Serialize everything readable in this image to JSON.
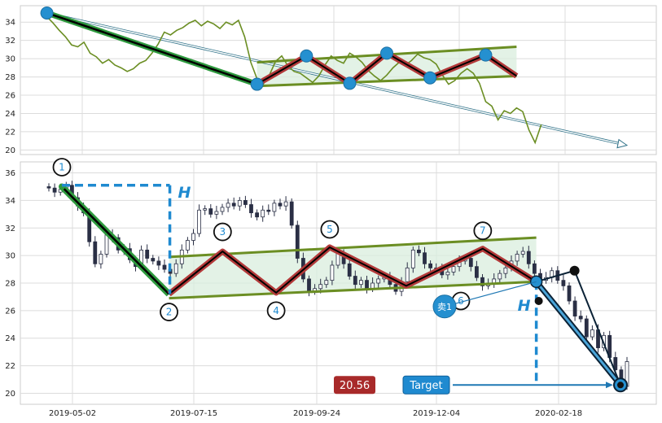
{
  "chart_data": [
    {
      "type": "line",
      "panel": "top",
      "ylim": [
        19.5,
        35.8
      ],
      "yticks": [
        20,
        22,
        24,
        26,
        28,
        30,
        32,
        34
      ],
      "grid": true,
      "series": [
        {
          "color": "#6b8e23",
          "values": [
            35,
            34.6,
            33.9,
            33.1,
            32.4,
            31.5,
            31.3,
            31.8,
            30.6,
            30.2,
            29.5,
            29.9,
            29.3,
            29.0,
            28.6,
            28.9,
            29.5,
            29.8,
            30.6,
            31.6,
            32.9,
            32.6,
            33.1,
            33.4,
            33.9,
            34.2,
            33.6,
            34.1,
            33.8,
            33.3,
            34.0,
            33.7,
            34.2,
            32.4,
            29.6,
            27.8,
            27.2,
            28.2,
            29.7,
            30.3,
            29.2,
            28.6,
            28.4,
            27.9,
            27.4,
            28.1,
            29.3,
            30.3,
            29.8,
            29.5,
            30.6,
            30.2,
            29.6,
            28.7,
            28.1,
            27.6,
            28.2,
            29.0,
            29.6,
            29.3,
            29.8,
            30.5,
            30.1,
            29.9,
            29.4,
            28.2,
            27.2,
            27.6,
            28.4,
            28.9,
            28.4,
            27.3,
            25.3,
            24.8,
            23.3,
            24.3,
            24.0,
            24.6,
            24.2,
            22.2,
            20.8,
            22.8
          ]
        }
      ],
      "pattern_vertices": [
        {
          "i": 1,
          "y": 35
        },
        {
          "i": 35,
          "y": 27.2
        },
        {
          "i": 43,
          "y": 30.3
        },
        {
          "i": 50,
          "y": 27.3
        },
        {
          "i": 56,
          "y": 30.6
        },
        {
          "i": 63,
          "y": 27.9
        },
        {
          "i": 72,
          "y": 30.4
        },
        {
          "i": 77,
          "y": 28.1
        }
      ],
      "channel": {
        "upper": [
          [
            35,
            29.6
          ],
          [
            77,
            31.3
          ]
        ],
        "lower": [
          [
            35,
            27.0
          ],
          [
            77,
            28.1
          ]
        ]
      },
      "trend_arrow": [
        [
          1,
          35
        ],
        [
          96,
          20.6
        ]
      ]
    },
    {
      "type": "candlestick",
      "panel": "bottom",
      "ylim": [
        19.2,
        36.8
      ],
      "yticks": [
        20,
        22,
        24,
        26,
        28,
        30,
        32,
        34,
        36
      ],
      "x_tick_labels": [
        "2019-05-02",
        "2019-07-15",
        "2019-09-24",
        "2019-12-04",
        "2020-02-18"
      ],
      "grid": true,
      "closes": [
        34.9,
        34.6,
        34.8,
        35.1,
        34.2,
        33.6,
        33.1,
        31.0,
        29.4,
        30.1,
        31.5,
        31.3,
        30.4,
        30.5,
        29.7,
        29.2,
        30.4,
        29.8,
        29.6,
        29.3,
        29.0,
        28.7,
        29.4,
        30.4,
        31.1,
        31.6,
        33.3,
        33.4,
        33.0,
        33.2,
        33.5,
        33.8,
        33.6,
        34.0,
        33.7,
        33.1,
        32.8,
        33.3,
        33.2,
        33.8,
        33.6,
        33.9,
        32.2,
        29.8,
        28.3,
        27.4,
        27.6,
        27.9,
        28.2,
        29.3,
        30.2,
        29.4,
        28.5,
        27.9,
        28.2,
        27.6,
        28.0,
        28.3,
        28.4,
        27.9,
        27.4,
        28.1,
        29.1,
        30.4,
        30.2,
        29.4,
        29.1,
        29.0,
        28.6,
        28.8,
        29.2,
        29.6,
        29.8,
        29.2,
        28.4,
        27.8,
        28.0,
        28.3,
        28.7,
        29.1,
        29.6,
        30.1,
        30.3,
        29.4,
        28.7,
        28.2,
        28.4,
        28.9,
        28.2,
        27.8,
        26.7,
        25.6,
        25.4,
        24.1,
        24.6,
        23.3,
        24.2,
        22.6,
        21.7,
        20.5,
        22.3
      ],
      "pattern_vertices": [
        {
          "label": "1",
          "x": 0,
          "y": 35.0
        },
        {
          "label": "2",
          "x": 14,
          "y": 27.2
        },
        {
          "label": "3",
          "x": 21,
          "y": 30.3
        },
        {
          "label": "4",
          "x": 28,
          "y": 27.3
        },
        {
          "label": "5",
          "x": 35,
          "y": 30.6
        },
        {
          "label": "6",
          "x": 45,
          "y": 27.8
        },
        {
          "label": "7",
          "x": 55,
          "y": 30.5
        },
        {
          "label": "",
          "x": 62,
          "y": 28.1
        }
      ],
      "channel": {
        "upper": [
          [
            14,
            29.9
          ],
          [
            62,
            31.3
          ]
        ],
        "lower": [
          [
            14,
            26.9
          ],
          [
            62,
            28.1
          ]
        ]
      },
      "measure_lines": [
        {
          "from": [
            0,
            35.1
          ],
          "to": [
            14,
            35.1
          ],
          "down_to": 27.2,
          "label": "H"
        },
        {
          "at_x": 62,
          "from": 28.1,
          "to": 20.6,
          "label": "H"
        }
      ],
      "projection": {
        "points": [
          [
            62,
            28.1
          ],
          [
            67,
            28.9
          ],
          [
            73,
            20.6
          ]
        ],
        "target": 20.56
      },
      "annotations": [
        {
          "text": "20.56",
          "color": "#a82a2a"
        },
        {
          "text": "Target",
          "color": "#1f8ad0"
        },
        {
          "text": "卖1",
          "color": "#1f8ad0"
        }
      ]
    }
  ]
}
